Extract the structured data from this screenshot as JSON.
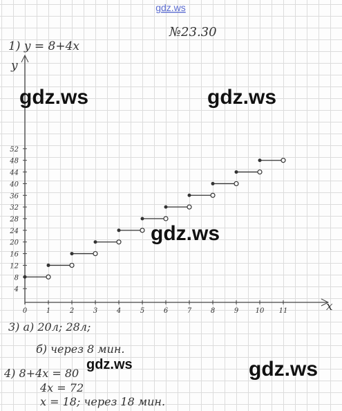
{
  "site": "gdz.ws",
  "task_number": "№23.30",
  "lines": [
    "1) y = 8+4x",
    "3) а) 20л; 28л;",
    "б) через 8 мин.",
    "4) 8+4x = 80",
    "4x = 72",
    "x = 18;  через 18 мин."
  ],
  "watermarks": [
    "gdz.ws",
    "gdz.ws",
    "gdz.ws",
    "gdz.ws",
    "gdz.ws"
  ],
  "chart_data": {
    "type": "step",
    "x_label": "x",
    "y_label": "y",
    "x": [
      0,
      1,
      2,
      3,
      4,
      5,
      6,
      7,
      8,
      9,
      10
    ],
    "values": [
      8,
      12,
      16,
      20,
      24,
      28,
      32,
      36,
      40,
      44,
      48
    ],
    "color": "#333333",
    "xlim": [
      0,
      12.5
    ],
    "ylim": [
      0,
      84
    ],
    "xticks": [
      0,
      1,
      2,
      3,
      4,
      5,
      6,
      7,
      8,
      9,
      10,
      11
    ],
    "yticks": [
      4,
      8,
      12,
      16,
      20,
      24,
      28,
      32,
      36,
      40,
      44,
      48,
      52
    ]
  }
}
